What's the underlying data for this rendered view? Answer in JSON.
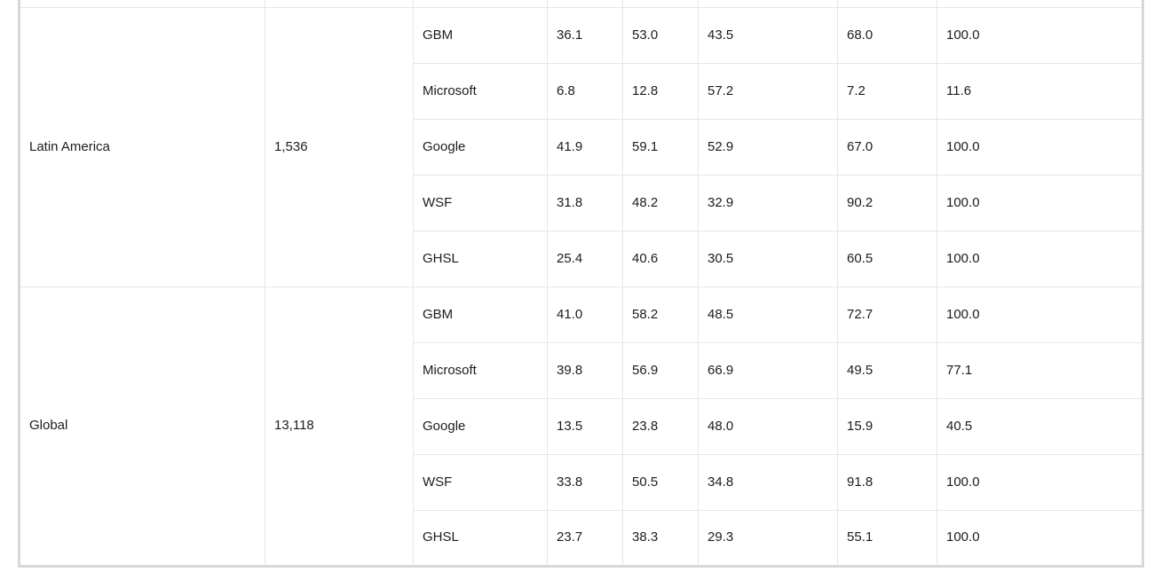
{
  "colors": {
    "grid_line": "#e6e6e6",
    "outer_border": "#d8d8d8",
    "text": "#1c1c1e",
    "background": "#ffffff"
  },
  "table": {
    "sections": [
      {
        "region": "Latin America",
        "count": "1,536",
        "rows": [
          {
            "model": "GBM",
            "values": [
              "36.1",
              "53.0",
              "43.5",
              "68.0",
              "100.0"
            ]
          },
          {
            "model": "Microsoft",
            "values": [
              "6.8",
              "12.8",
              "57.2",
              "7.2",
              "11.6"
            ]
          },
          {
            "model": "Google",
            "values": [
              "41.9",
              "59.1",
              "52.9",
              "67.0",
              "100.0"
            ]
          },
          {
            "model": "WSF",
            "values": [
              "31.8",
              "48.2",
              "32.9",
              "90.2",
              "100.0"
            ]
          },
          {
            "model": "GHSL",
            "values": [
              "25.4",
              "40.6",
              "30.5",
              "60.5",
              "100.0"
            ]
          }
        ]
      },
      {
        "region": "Global",
        "count": "13,118",
        "rows": [
          {
            "model": "GBM",
            "values": [
              "41.0",
              "58.2",
              "48.5",
              "72.7",
              "100.0"
            ]
          },
          {
            "model": "Microsoft",
            "values": [
              "39.8",
              "56.9",
              "66.9",
              "49.5",
              "77.1"
            ]
          },
          {
            "model": "Google",
            "values": [
              "13.5",
              "23.8",
              "48.0",
              "15.9",
              "40.5"
            ]
          },
          {
            "model": "WSF",
            "values": [
              "33.8",
              "50.5",
              "34.8",
              "91.8",
              "100.0"
            ]
          },
          {
            "model": "GHSL",
            "values": [
              "23.7",
              "38.3",
              "29.3",
              "55.1",
              "100.0"
            ]
          }
        ]
      }
    ]
  }
}
